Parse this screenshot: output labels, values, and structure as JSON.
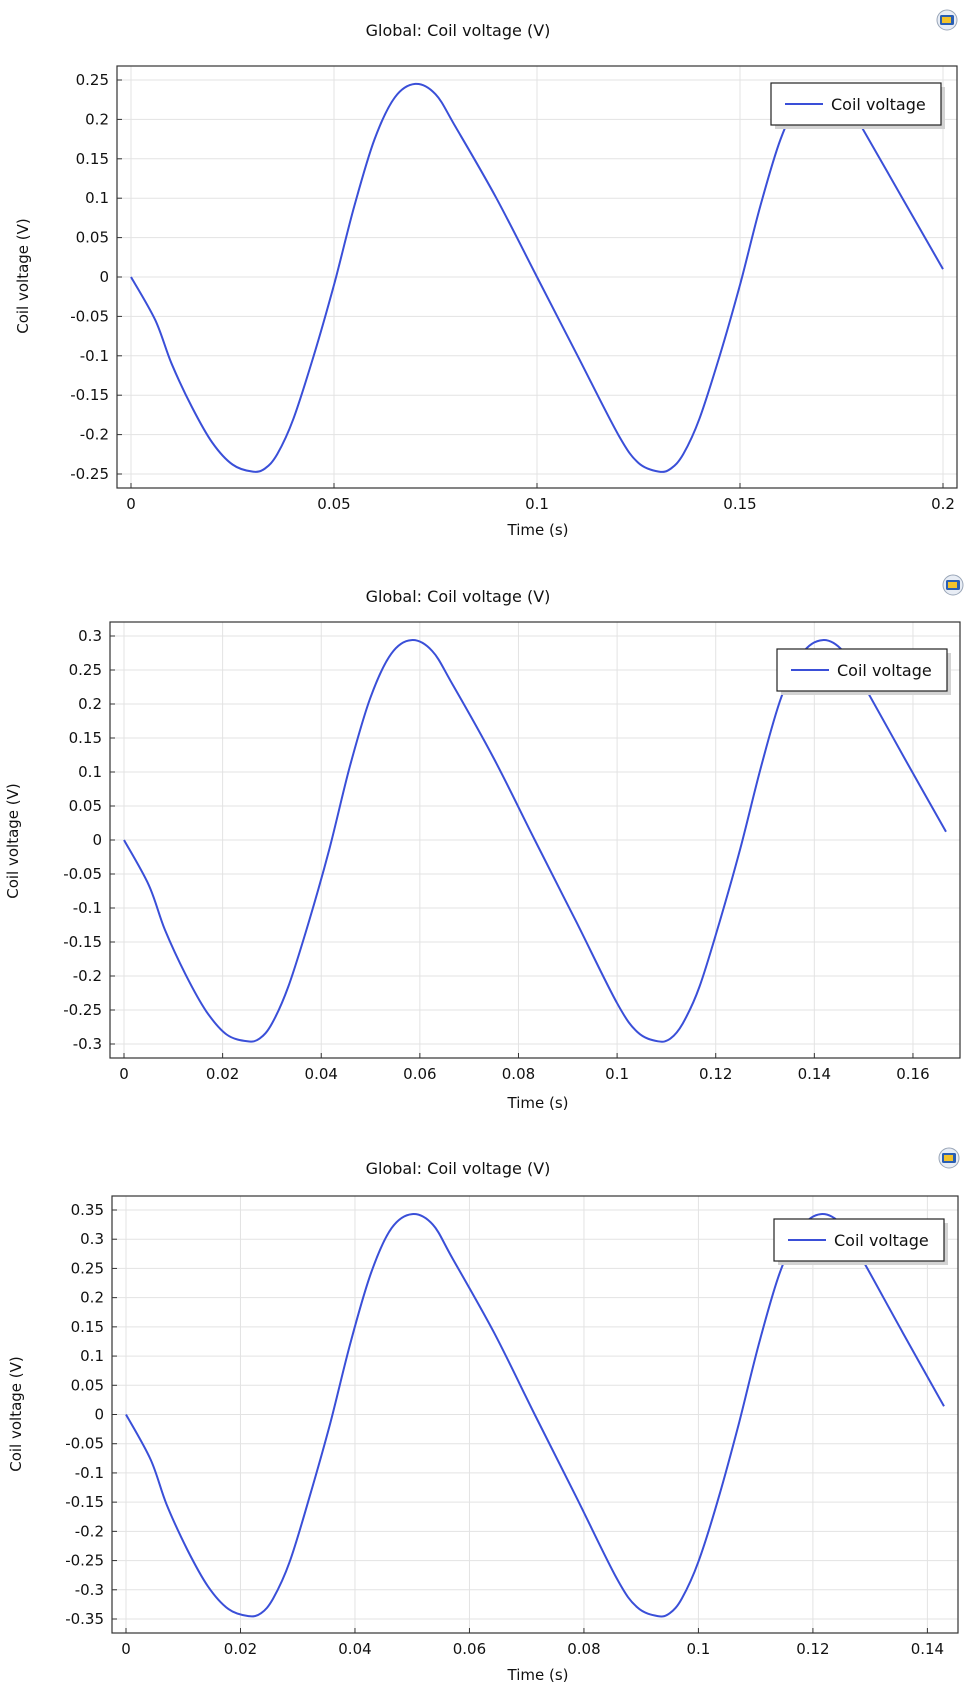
{
  "chart_data": [
    {
      "type": "line",
      "title": "Global: Coil voltage (V)",
      "xlabel": "Time (s)",
      "ylabel": "Coil voltage (V)",
      "legend": {
        "entries": [
          "Coil voltage"
        ],
        "placement": "top-right"
      },
      "grid": true,
      "xlim": [
        0,
        0.2
      ],
      "ylim": [
        -0.25,
        0.25
      ],
      "x_ticks": [
        0,
        0.05,
        0.1,
        0.15,
        0.2
      ],
      "x_tick_labels": [
        "0",
        "0.05",
        "0.1",
        "0.15",
        "0.2"
      ],
      "y_ticks": [
        -0.25,
        -0.2,
        -0.15,
        -0.1,
        -0.05,
        0,
        0.05,
        0.1,
        0.15,
        0.2,
        0.25
      ],
      "y_tick_labels": [
        "-0.25",
        "-0.2",
        "-0.15",
        "-0.1",
        "-0.05",
        "0",
        "0.05",
        "0.1",
        "0.15",
        "0.2",
        "0.25"
      ],
      "series": [
        {
          "name": "Coil voltage",
          "color": "#3a4fd8",
          "x": [
            0,
            0.006,
            0.01,
            0.015,
            0.02,
            0.025,
            0.03,
            0.033,
            0.036,
            0.04,
            0.045,
            0.05,
            0.055,
            0.06,
            0.065,
            0.07,
            0.075,
            0.08,
            0.09,
            0.1,
            0.11,
            0.12,
            0.125,
            0.13,
            0.133,
            0.136,
            0.14,
            0.145,
            0.15,
            0.155,
            0.16,
            0.165,
            0.17,
            0.175,
            0.18,
            0.19,
            0.2
          ],
          "y": [
            0,
            -0.055,
            -0.11,
            -0.165,
            -0.21,
            -0.238,
            -0.247,
            -0.243,
            -0.225,
            -0.18,
            -0.1,
            -0.01,
            0.09,
            0.175,
            0.228,
            0.245,
            0.232,
            0.19,
            0.1,
            0.0,
            -0.1,
            -0.2,
            -0.236,
            -0.247,
            -0.243,
            -0.225,
            -0.18,
            -0.1,
            -0.01,
            0.09,
            0.175,
            0.228,
            0.245,
            0.232,
            0.19,
            0.1,
            0.01
          ]
        }
      ]
    },
    {
      "type": "line",
      "title": "Global: Coil voltage (V)",
      "xlabel": "Time (s)",
      "ylabel": "Coil voltage (V)",
      "legend": {
        "entries": [
          "Coil voltage"
        ],
        "placement": "top-right"
      },
      "grid": true,
      "xlim": [
        0,
        0.1667
      ],
      "ylim": [
        -0.3,
        0.3
      ],
      "x_ticks": [
        0,
        0.02,
        0.04,
        0.06,
        0.08,
        0.1,
        0.12,
        0.14,
        0.16
      ],
      "x_tick_labels": [
        "0",
        "0.02",
        "0.04",
        "0.06",
        "0.08",
        "0.1",
        "0.12",
        "0.14",
        "0.16"
      ],
      "y_ticks": [
        -0.3,
        -0.25,
        -0.2,
        -0.15,
        -0.1,
        -0.05,
        0,
        0.05,
        0.1,
        0.15,
        0.2,
        0.25,
        0.3
      ],
      "y_tick_labels": [
        "-0.3",
        "-0.25",
        "-0.2",
        "-0.15",
        "-0.1",
        "-0.05",
        "0",
        "0.05",
        "0.1",
        "0.15",
        "0.2",
        "0.25",
        "0.3"
      ],
      "series": [
        {
          "name": "Coil voltage",
          "color": "#3a4fd8",
          "x": [
            0,
            0.005,
            0.0083,
            0.0125,
            0.0167,
            0.0208,
            0.025,
            0.0275,
            0.03,
            0.0333,
            0.0375,
            0.0417,
            0.0458,
            0.05,
            0.0542,
            0.0583,
            0.0625,
            0.0667,
            0.075,
            0.0833,
            0.0917,
            0.1,
            0.1042,
            0.1083,
            0.1108,
            0.1133,
            0.1167,
            0.1208,
            0.125,
            0.1292,
            0.1333,
            0.1375,
            0.1417,
            0.1458,
            0.15,
            0.1583,
            0.1667
          ],
          "y": [
            0,
            -0.066,
            -0.132,
            -0.198,
            -0.252,
            -0.286,
            -0.296,
            -0.292,
            -0.27,
            -0.216,
            -0.12,
            -0.012,
            0.108,
            0.21,
            0.274,
            0.294,
            0.278,
            0.228,
            0.12,
            0.0,
            -0.12,
            -0.24,
            -0.283,
            -0.296,
            -0.292,
            -0.27,
            -0.216,
            -0.12,
            -0.012,
            0.108,
            0.21,
            0.274,
            0.294,
            0.278,
            0.228,
            0.12,
            0.012
          ]
        }
      ]
    },
    {
      "type": "line",
      "title": "Global: Coil voltage (V)",
      "xlabel": "Time (s)",
      "ylabel": "Coil voltage (V)",
      "legend": {
        "entries": [
          "Coil voltage"
        ],
        "placement": "top-right"
      },
      "grid": true,
      "xlim": [
        0,
        0.1429
      ],
      "ylim": [
        -0.35,
        0.35
      ],
      "x_ticks": [
        0,
        0.02,
        0.04,
        0.06,
        0.08,
        0.1,
        0.12,
        0.14
      ],
      "x_tick_labels": [
        "0",
        "0.02",
        "0.04",
        "0.06",
        "0.08",
        "0.1",
        "0.12",
        "0.14"
      ],
      "y_ticks": [
        -0.35,
        -0.3,
        -0.25,
        -0.2,
        -0.15,
        -0.1,
        -0.05,
        0,
        0.05,
        0.1,
        0.15,
        0.2,
        0.25,
        0.3,
        0.35
      ],
      "y_tick_labels": [
        "-0.35",
        "-0.3",
        "-0.25",
        "-0.2",
        "-0.15",
        "-0.1",
        "-0.05",
        "0",
        "0.05",
        "0.1",
        "0.15",
        "0.2",
        "0.25",
        "0.3",
        "0.35"
      ],
      "series": [
        {
          "name": "Coil voltage",
          "color": "#3a4fd8",
          "x": [
            0,
            0.0043,
            0.0071,
            0.0107,
            0.0143,
            0.0179,
            0.0214,
            0.0236,
            0.0257,
            0.0286,
            0.0321,
            0.0357,
            0.0393,
            0.0429,
            0.0464,
            0.05,
            0.0536,
            0.0571,
            0.0643,
            0.0714,
            0.0786,
            0.0857,
            0.0893,
            0.0929,
            0.095,
            0.0971,
            0.1,
            0.1036,
            0.1071,
            0.1107,
            0.1143,
            0.1179,
            0.1214,
            0.125,
            0.1286,
            0.1357,
            0.1429
          ],
          "y": [
            0,
            -0.077,
            -0.154,
            -0.231,
            -0.294,
            -0.333,
            -0.345,
            -0.34,
            -0.315,
            -0.252,
            -0.14,
            -0.014,
            0.126,
            0.245,
            0.319,
            0.343,
            0.325,
            0.266,
            0.14,
            0.0,
            -0.14,
            -0.28,
            -0.33,
            -0.345,
            -0.34,
            -0.315,
            -0.252,
            -0.14,
            -0.014,
            0.126,
            0.245,
            0.319,
            0.343,
            0.325,
            0.266,
            0.14,
            0.014
          ]
        }
      ]
    }
  ]
}
